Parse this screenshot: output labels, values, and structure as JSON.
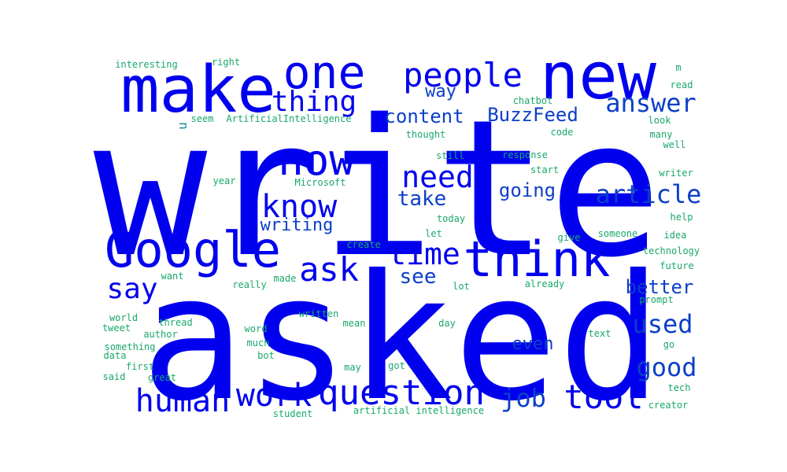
{
  "palette": {
    "big": "#0000ee",
    "mid": "#0b3fc9",
    "teal": "#1a8ea0",
    "green": "#19a86a"
  },
  "words": [
    {
      "text": "write",
      "weight": 1.0,
      "color": "big"
    },
    {
      "text": "asked",
      "weight": 0.97,
      "color": "big"
    },
    {
      "text": "make",
      "weight": 0.55,
      "color": "big"
    },
    {
      "text": "new",
      "weight": 0.55,
      "color": "big"
    },
    {
      "text": "Google",
      "weight": 0.5,
      "color": "big"
    },
    {
      "text": "think",
      "weight": 0.5,
      "color": "big"
    },
    {
      "text": "one",
      "weight": 0.45,
      "color": "big"
    },
    {
      "text": "now",
      "weight": 0.43,
      "color": "big"
    },
    {
      "text": "question",
      "weight": 0.38,
      "color": "big"
    },
    {
      "text": "people",
      "weight": 0.36,
      "color": "big"
    },
    {
      "text": "ask",
      "weight": 0.36,
      "color": "big"
    },
    {
      "text": "tool",
      "weight": 0.36,
      "color": "big"
    },
    {
      "text": "human",
      "weight": 0.35,
      "color": "big"
    },
    {
      "text": "work",
      "weight": 0.34,
      "color": "big"
    },
    {
      "text": "know",
      "weight": 0.34,
      "color": "big"
    },
    {
      "text": "time",
      "weight": 0.32,
      "color": "big"
    },
    {
      "text": "need",
      "weight": 0.32,
      "color": "big"
    },
    {
      "text": "thing",
      "weight": 0.31,
      "color": "big"
    },
    {
      "text": "say",
      "weight": 0.31,
      "color": "big"
    },
    {
      "text": "answer",
      "weight": 0.29,
      "color": "mid"
    },
    {
      "text": "article",
      "weight": 0.29,
      "color": "mid"
    },
    {
      "text": "good",
      "weight": 0.29,
      "color": "mid"
    },
    {
      "text": "job",
      "weight": 0.27,
      "color": "mid"
    },
    {
      "text": "used",
      "weight": 0.27,
      "color": "mid"
    },
    {
      "text": "take",
      "weight": 0.22,
      "color": "mid"
    },
    {
      "text": "see",
      "weight": 0.22,
      "color": "mid"
    },
    {
      "text": "content",
      "weight": 0.2,
      "color": "mid"
    },
    {
      "text": "BuzzFeed",
      "weight": 0.2,
      "color": "mid"
    },
    {
      "text": "going",
      "weight": 0.2,
      "color": "mid"
    },
    {
      "text": "better",
      "weight": 0.2,
      "color": "mid"
    },
    {
      "text": "writing",
      "weight": 0.19,
      "color": "mid"
    },
    {
      "text": "even",
      "weight": 0.19,
      "color": "mid"
    },
    {
      "text": "way",
      "weight": 0.19,
      "color": "mid"
    },
    {
      "text": "u",
      "weight": 0.15,
      "color": "teal"
    },
    {
      "text": "interesting",
      "weight": 0.1,
      "color": "green"
    },
    {
      "text": "right",
      "weight": 0.1,
      "color": "green"
    },
    {
      "text": "m",
      "weight": 0.1,
      "color": "green"
    },
    {
      "text": "read",
      "weight": 0.1,
      "color": "green"
    },
    {
      "text": "chatbot",
      "weight": 0.1,
      "color": "green"
    },
    {
      "text": "look",
      "weight": 0.1,
      "color": "green"
    },
    {
      "text": "seem",
      "weight": 0.1,
      "color": "green"
    },
    {
      "text": "ArtificialIntelligence",
      "weight": 0.1,
      "color": "green"
    },
    {
      "text": "code",
      "weight": 0.1,
      "color": "green"
    },
    {
      "text": "many",
      "weight": 0.1,
      "color": "green"
    },
    {
      "text": "thought",
      "weight": 0.1,
      "color": "green"
    },
    {
      "text": "still",
      "weight": 0.1,
      "color": "green"
    },
    {
      "text": "well",
      "weight": 0.1,
      "color": "green"
    },
    {
      "text": "response",
      "weight": 0.1,
      "color": "green"
    },
    {
      "text": "start",
      "weight": 0.1,
      "color": "green"
    },
    {
      "text": "writer",
      "weight": 0.1,
      "color": "green"
    },
    {
      "text": "year",
      "weight": 0.1,
      "color": "green"
    },
    {
      "text": "Microsoft",
      "weight": 0.1,
      "color": "green"
    },
    {
      "text": "help",
      "weight": 0.1,
      "color": "green"
    },
    {
      "text": "today",
      "weight": 0.1,
      "color": "green"
    },
    {
      "text": "let",
      "weight": 0.1,
      "color": "green"
    },
    {
      "text": "someone",
      "weight": 0.1,
      "color": "green"
    },
    {
      "text": "give",
      "weight": 0.1,
      "color": "green"
    },
    {
      "text": "idea",
      "weight": 0.1,
      "color": "green"
    },
    {
      "text": "create",
      "weight": 0.1,
      "color": "green"
    },
    {
      "text": "technology",
      "weight": 0.1,
      "color": "green"
    },
    {
      "text": "future",
      "weight": 0.1,
      "color": "green"
    },
    {
      "text": "want",
      "weight": 0.1,
      "color": "green"
    },
    {
      "text": "made",
      "weight": 0.1,
      "color": "green"
    },
    {
      "text": "really",
      "weight": 0.1,
      "color": "green"
    },
    {
      "text": "lot",
      "weight": 0.1,
      "color": "green"
    },
    {
      "text": "already",
      "weight": 0.1,
      "color": "green"
    },
    {
      "text": "prompt",
      "weight": 0.1,
      "color": "green"
    },
    {
      "text": "world",
      "weight": 0.1,
      "color": "green"
    },
    {
      "text": "written",
      "weight": 0.1,
      "color": "green"
    },
    {
      "text": "thread",
      "weight": 0.1,
      "color": "green"
    },
    {
      "text": "tweet",
      "weight": 0.1,
      "color": "green"
    },
    {
      "text": "word",
      "weight": 0.1,
      "color": "green"
    },
    {
      "text": "mean",
      "weight": 0.1,
      "color": "green"
    },
    {
      "text": "day",
      "weight": 0.1,
      "color": "green"
    },
    {
      "text": "text",
      "weight": 0.1,
      "color": "green"
    },
    {
      "text": "author",
      "weight": 0.1,
      "color": "green"
    },
    {
      "text": "much",
      "weight": 0.1,
      "color": "green"
    },
    {
      "text": "something",
      "weight": 0.1,
      "color": "green"
    },
    {
      "text": "go",
      "weight": 0.1,
      "color": "green"
    },
    {
      "text": "data",
      "weight": 0.1,
      "color": "green"
    },
    {
      "text": "bot",
      "weight": 0.1,
      "color": "green"
    },
    {
      "text": "first",
      "weight": 0.1,
      "color": "green"
    },
    {
      "text": "may",
      "weight": 0.1,
      "color": "green"
    },
    {
      "text": "got",
      "weight": 0.1,
      "color": "green"
    },
    {
      "text": "said",
      "weight": 0.1,
      "color": "green"
    },
    {
      "text": "great",
      "weight": 0.1,
      "color": "green"
    },
    {
      "text": "tech",
      "weight": 0.1,
      "color": "green"
    },
    {
      "text": "artificial intelligence",
      "weight": 0.1,
      "color": "green"
    },
    {
      "text": "creator",
      "weight": 0.1,
      "color": "green"
    },
    {
      "text": "student",
      "weight": 0.1,
      "color": "green"
    }
  ]
}
